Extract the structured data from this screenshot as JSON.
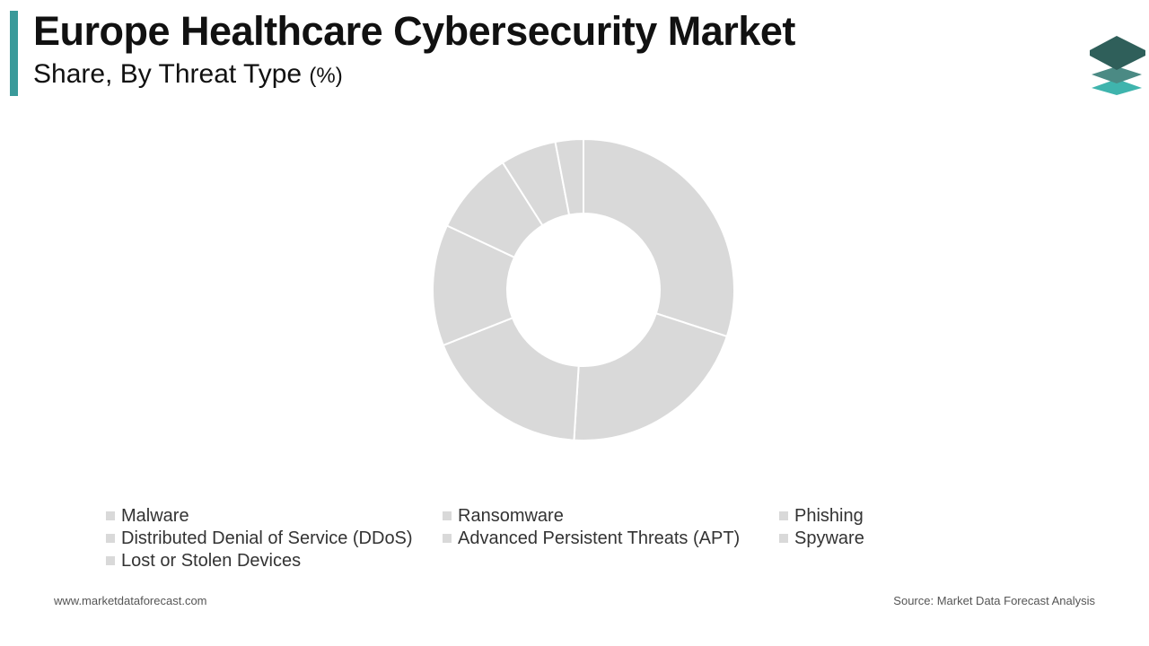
{
  "header": {
    "title": "Europe Healthcare Cybersecurity Market",
    "subtitle": "Share, By Threat Type",
    "unit": "(%)"
  },
  "colors": {
    "accent": "#3a9a9a",
    "slice_fill": "#d9d9d9",
    "slice_stroke": "#ffffff",
    "logo_dark": "#2f5f5a",
    "logo_mid": "#4b8a84",
    "logo_light": "#3fb4ad"
  },
  "logo": {
    "icon": "layers-stack-icon"
  },
  "chart_data": {
    "type": "pie",
    "donut": true,
    "categories": [
      "Malware",
      "Ransomware",
      "Phishing",
      "Distributed Denial of Service (DDoS)",
      "Advanced Persistent Threats (APT)",
      "Spyware",
      "Lost or Stolen Devices"
    ],
    "values": [
      30,
      21,
      18,
      13,
      9,
      6,
      3
    ],
    "title": "",
    "legend_position": "bottom"
  },
  "footer": {
    "website": "www.marketdataforecast.com",
    "source": "Source: Market Data Forecast Analysis"
  }
}
